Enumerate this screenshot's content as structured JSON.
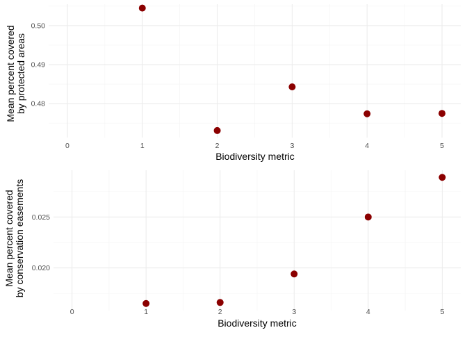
{
  "colors": {
    "point": "#8B0000",
    "grid": "#ebebeb",
    "tick_text": "#4d4d4d"
  },
  "chart_data": [
    {
      "type": "scatter",
      "xlabel": "Biodiversity metric",
      "ylabel_lines": [
        "Mean percent covered",
        "by protected areas"
      ],
      "xlim": [
        0,
        5
      ],
      "ylim": [
        0.4713,
        0.5055
      ],
      "xticks": [
        0,
        1,
        2,
        3,
        4,
        5
      ],
      "xtick_labels": [
        "0",
        "1",
        "2",
        "3",
        "4",
        "5"
      ],
      "yticks": [
        0.48,
        0.49,
        0.5
      ],
      "ytick_labels": [
        "0.48",
        "0.49",
        "0.50"
      ],
      "grid": true,
      "points": [
        {
          "x": 1,
          "y": 0.5045
        },
        {
          "x": 2,
          "y": 0.4731
        },
        {
          "x": 3,
          "y": 0.4843
        },
        {
          "x": 4,
          "y": 0.4774
        },
        {
          "x": 5,
          "y": 0.4775
        }
      ]
    },
    {
      "type": "scatter",
      "xlabel": "Biodiversity metric",
      "ylabel_lines": [
        "Mean percent covered",
        "by conservation easements"
      ],
      "xlim": [
        0,
        5
      ],
      "ylim": [
        0.0158,
        0.0296
      ],
      "xticks": [
        0,
        1,
        2,
        3,
        4,
        5
      ],
      "xtick_labels": [
        "0",
        "1",
        "2",
        "3",
        "4",
        "5"
      ],
      "yticks": [
        0.02,
        0.025
      ],
      "ytick_labels": [
        "0.020",
        "0.025"
      ],
      "grid": true,
      "points": [
        {
          "x": 1,
          "y": 0.0165
        },
        {
          "x": 2,
          "y": 0.0166
        },
        {
          "x": 3,
          "y": 0.0194
        },
        {
          "x": 4,
          "y": 0.025
        },
        {
          "x": 5,
          "y": 0.0289
        }
      ]
    }
  ]
}
